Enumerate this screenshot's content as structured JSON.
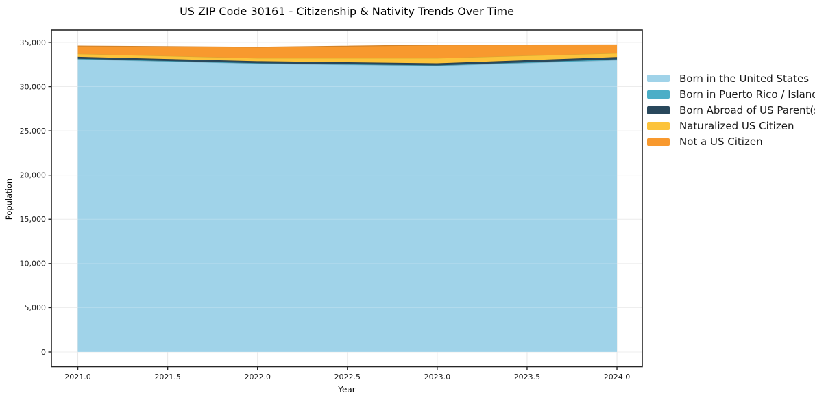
{
  "title": "US ZIP Code 30161 - Citizenship & Nativity Trends Over Time",
  "chart_data": {
    "type": "area",
    "stacked": true,
    "title": "US ZIP Code 30161 - Citizenship & Nativity Trends Over Time",
    "xlabel": "Year",
    "ylabel": "Population",
    "x": [
      2021,
      2022,
      2023,
      2024
    ],
    "series": [
      {
        "name": "Born in the United States",
        "color": "#a0d3e9",
        "values": [
          33100,
          32600,
          32350,
          33000
        ]
      },
      {
        "name": "Born in Puerto Rico / Islands",
        "color": "#4baec7",
        "values": [
          60,
          50,
          50,
          100
        ]
      },
      {
        "name": "Born Abroad of US Parent(s)",
        "color": "#29485c",
        "values": [
          220,
          230,
          230,
          250
        ]
      },
      {
        "name": "Naturalized US Citizen",
        "color": "#fcc33b",
        "values": [
          330,
          350,
          600,
          430
        ]
      },
      {
        "name": "Not a US Citizen",
        "color": "#f8992e",
        "values": [
          890,
          1240,
          1480,
          950
        ]
      }
    ],
    "totals": [
      34600,
      34470,
      34710,
      34730
    ],
    "x_ticks": [
      2021.0,
      2021.5,
      2022.0,
      2022.5,
      2023.0,
      2023.5,
      2024.0
    ],
    "x_tick_labels": [
      "2021.0",
      "2021.5",
      "2022.0",
      "2022.5",
      "2023.0",
      "2023.5",
      "2024.0"
    ],
    "y_ticks": [
      0,
      5000,
      10000,
      15000,
      20000,
      25000,
      30000,
      35000
    ],
    "y_tick_labels": [
      "0",
      "5,000",
      "10,000",
      "15,000",
      "20,000",
      "25,000",
      "30,000",
      "35,000"
    ],
    "xlim": [
      2020.853,
      2024.141
    ],
    "ylim": [
      -1665,
      36390
    ],
    "grid": true,
    "grid_color": "#e7e7e7",
    "spine_color": "#262626",
    "tick_label_color": "#1c1c1c",
    "legend_position": "right-outside",
    "background_color": "#ffffff"
  }
}
